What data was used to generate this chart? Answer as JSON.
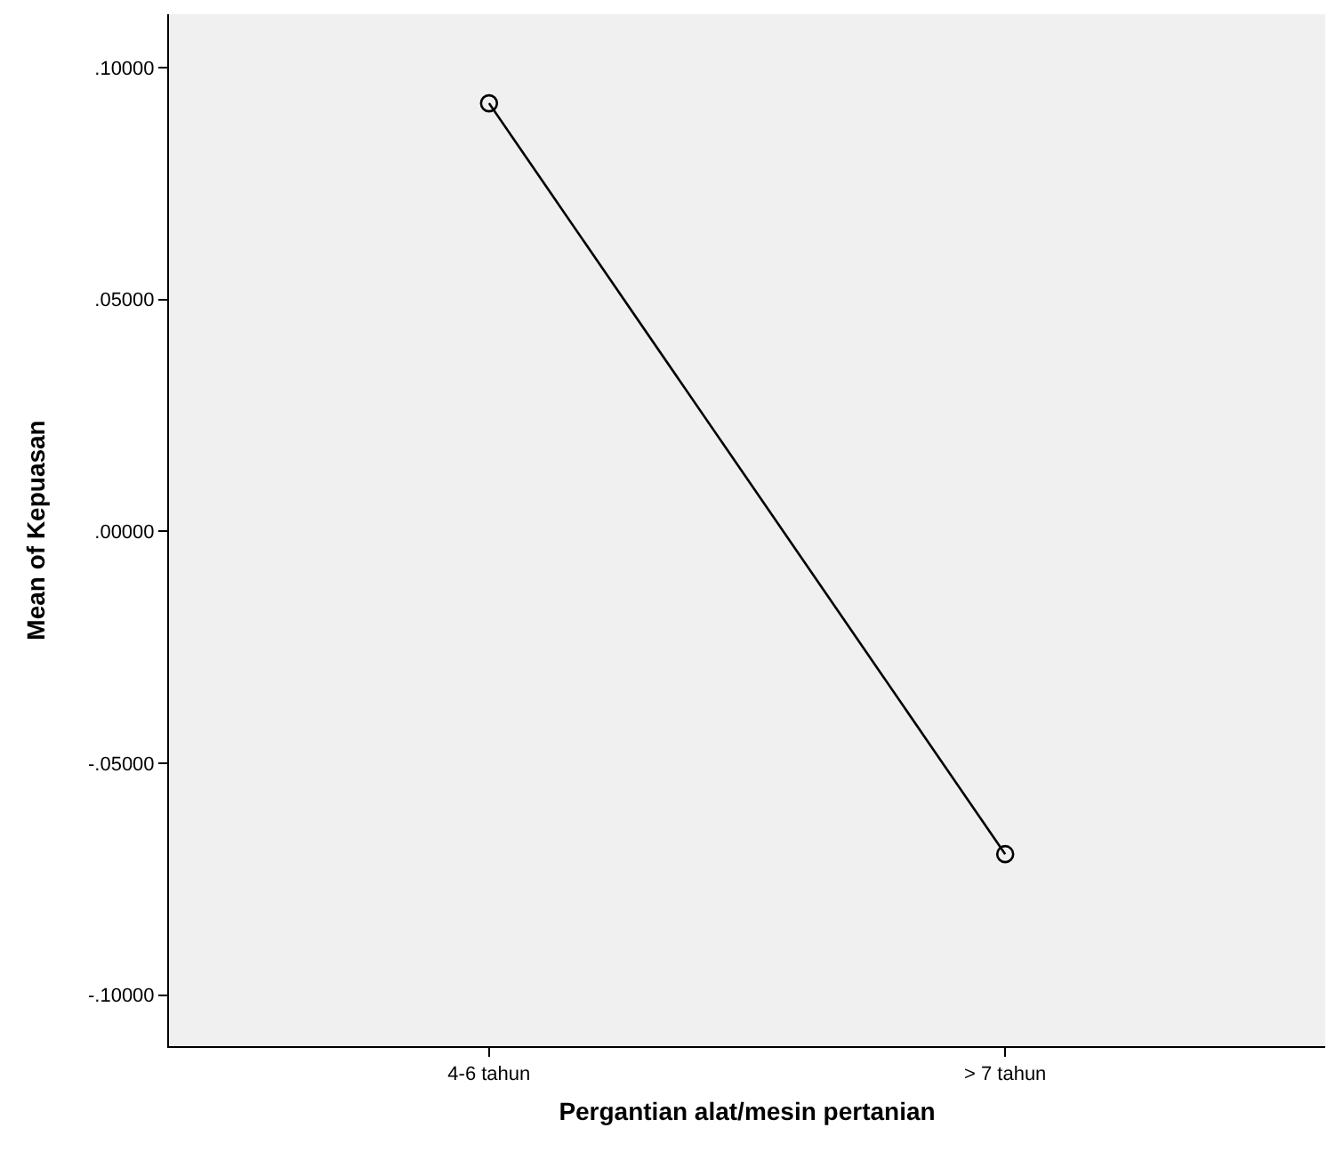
{
  "chart_data": {
    "type": "line",
    "xlabel": "Pergantian alat/mesin pertanian",
    "ylabel": "Mean of Kepuasan",
    "categories": [
      "4-6 tahun",
      "> 7 tahun"
    ],
    "series": [
      {
        "color": "#000000",
        "values": [
          0.0923,
          -0.0696
        ]
      }
    ],
    "ylim": [
      -0.111,
      0.1115
    ],
    "yticks": [
      {
        "value": -0.1,
        "label": "-.10000"
      },
      {
        "value": -0.05,
        "label": "-.05000"
      },
      {
        "value": 0,
        "label": ".00000"
      },
      {
        "value": 0.05,
        "label": ".05000"
      },
      {
        "value": 0.1,
        "label": ".10000"
      }
    ],
    "marker": "circle",
    "line_style": "solid",
    "grid": false
  }
}
